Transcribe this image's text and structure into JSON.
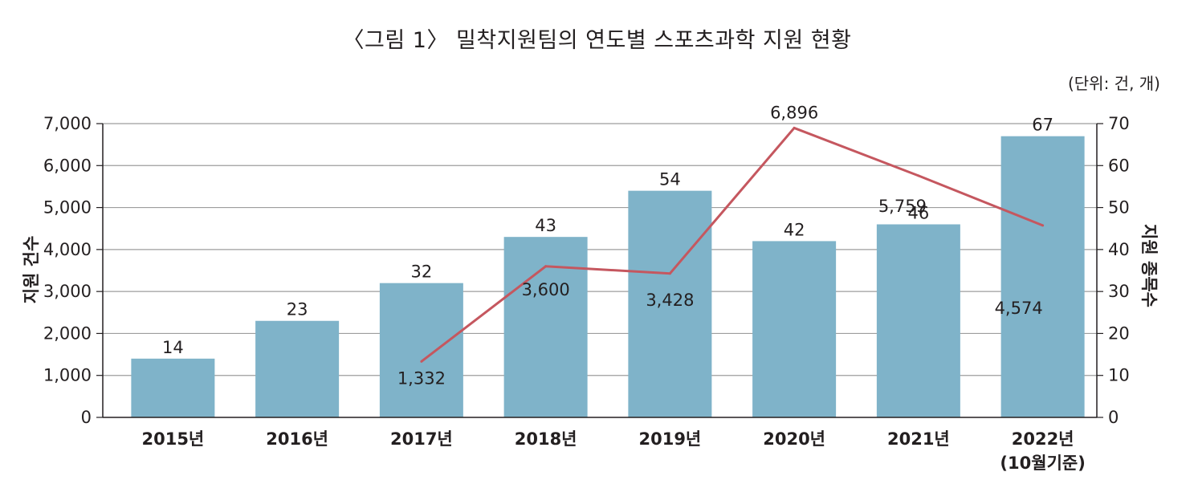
{
  "chart_data": {
    "type": "bar+line",
    "title": "〈그림 1〉 밀착지원팀의 연도별 스포츠과학 지원 현황",
    "unit": "(단위: 건, 개)",
    "categories": [
      "2015년",
      "2016년",
      "2017년",
      "2018년",
      "2019년",
      "2020년",
      "2021년",
      "2022년 (10월기준)"
    ],
    "category_lines": [
      [
        "2015년"
      ],
      [
        "2016년"
      ],
      [
        "2017년"
      ],
      [
        "2018년"
      ],
      [
        "2019년"
      ],
      [
        "2020년"
      ],
      [
        "2021년"
      ],
      [
        "2022년",
        "(10월기준)"
      ]
    ],
    "bars": {
      "name": "지원 종목수",
      "axis": "right",
      "values": [
        14,
        23,
        32,
        43,
        54,
        42,
        46,
        67
      ],
      "labels": [
        "14",
        "23",
        "32",
        "43",
        "54",
        "42",
        "46",
        "67"
      ],
      "color": "#7fb3c9"
    },
    "line": {
      "name": "지원 건수",
      "axis": "left",
      "x_categories": [
        "2017년",
        "2018년",
        "2019년",
        "2020년",
        "2021년",
        "2022년 (10월기준)"
      ],
      "values": [
        1332,
        3600,
        3428,
        6896,
        5759,
        4574
      ],
      "labels": [
        "1,332",
        "3,600",
        "3,428",
        "6,896",
        "5,759",
        "4,574"
      ],
      "color": "#c5575f"
    },
    "left_axis": {
      "title": "지원 건수",
      "ylim": [
        0,
        7000
      ],
      "ticks": [
        0,
        1000,
        2000,
        3000,
        4000,
        5000,
        6000,
        7000
      ],
      "tick_labels": [
        "0",
        "1,000",
        "2,000",
        "3,000",
        "4,000",
        "5,000",
        "6,000",
        "7,000"
      ]
    },
    "right_axis": {
      "title": "지원 종목수",
      "ylim": [
        0,
        70
      ],
      "ticks": [
        0,
        10,
        20,
        30,
        40,
        50,
        60,
        70
      ],
      "tick_labels": [
        "0",
        "10",
        "20",
        "30",
        "40",
        "50",
        "60",
        "70"
      ]
    },
    "grid": true,
    "legend": "none"
  }
}
